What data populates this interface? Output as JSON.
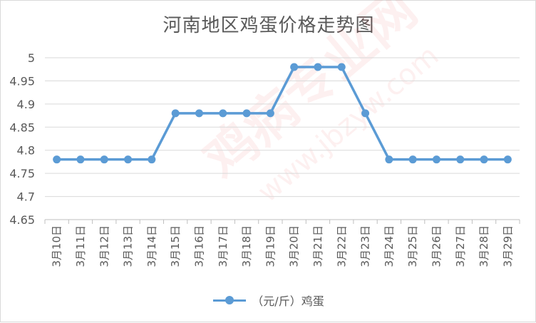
{
  "chart_data": {
    "type": "line",
    "title": "河南地区鸡蛋价格走势图",
    "categories": [
      "3月10日",
      "3月11日",
      "3月12日",
      "3月13日",
      "3月14日",
      "3月15日",
      "3月16日",
      "3月17日",
      "3月18日",
      "3月19日",
      "3月20日",
      "3月21日",
      "3月22日",
      "3月23日",
      "3月24日",
      "3月25日",
      "3月26日",
      "3月27日",
      "3月28日",
      "3月29日"
    ],
    "series": [
      {
        "name": "（元/斤）鸡蛋",
        "values": [
          4.78,
          4.78,
          4.78,
          4.78,
          4.78,
          4.88,
          4.88,
          4.88,
          4.88,
          4.88,
          4.98,
          4.98,
          4.98,
          4.88,
          4.78,
          4.78,
          4.78,
          4.78,
          4.78,
          4.78
        ]
      }
    ],
    "ylim": [
      4.65,
      5.0
    ],
    "yticks": [
      "4.65",
      "4.7",
      "4.75",
      "4.8",
      "4.85",
      "4.9",
      "4.95",
      "5"
    ],
    "grid": true,
    "legend_position": "bottom",
    "line_color": "#5b9bd5"
  },
  "watermark": {
    "text": "鸡病专业网",
    "sub": "www.jbzyw.com"
  }
}
